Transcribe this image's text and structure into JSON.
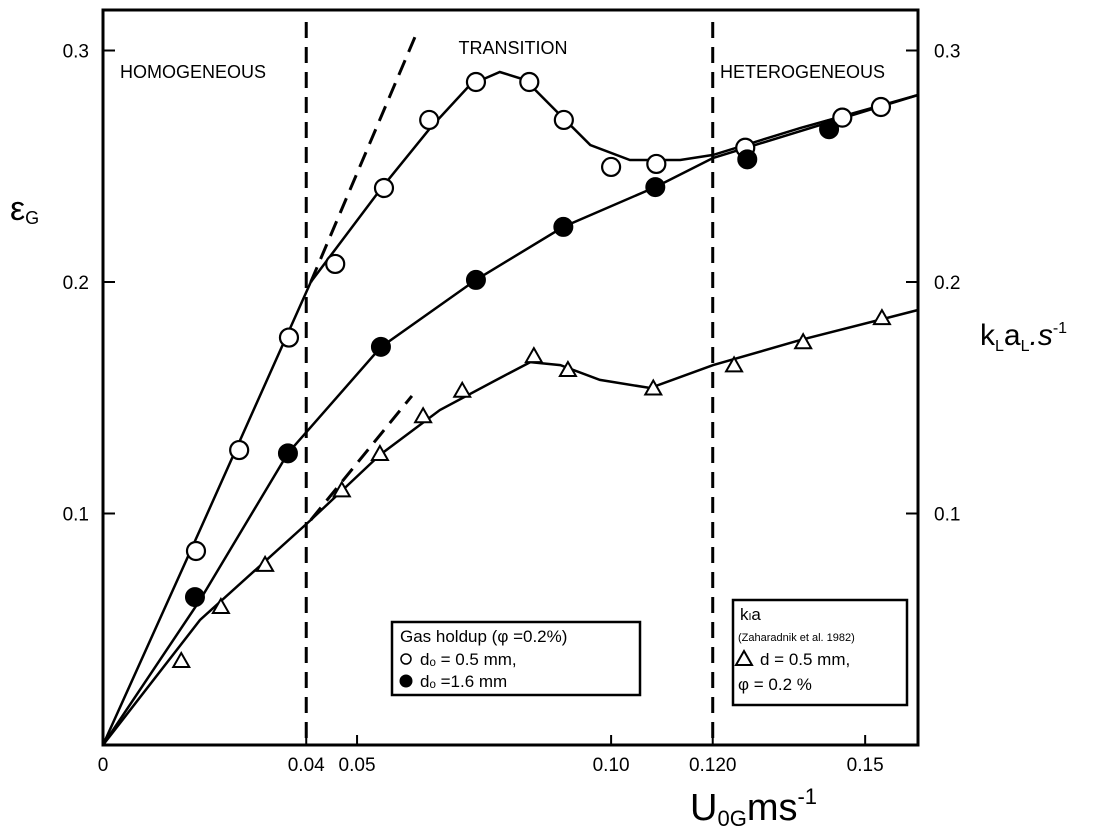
{
  "chart_data": {
    "type": "scatter",
    "x_label": [
      "U",
      "0G",
      "ms",
      "-1"
    ],
    "y_label": [
      "ε",
      "G"
    ],
    "y2_label": [
      "k",
      "L",
      "a",
      "L",
      ".s",
      "-1"
    ],
    "xlim": [
      0,
      0.1604
    ],
    "ylim": [
      0,
      0.3175
    ],
    "y2lim": [
      0,
      0.3175
    ],
    "xticks": [
      0,
      0.04,
      0.05,
      {
        "value": 0.1,
        "label": "0.10"
      },
      {
        "value": 0.12,
        "label": "0.120"
      },
      0.15
    ],
    "yticks": [
      0.1,
      0.2,
      0.3
    ],
    "y2ticks": [
      0.1,
      0.2,
      0.3
    ],
    "annotations": [
      "HOMOGENEOUS",
      "TRANSITION",
      "HETEROGENEOUS"
    ],
    "boundaries": [
      0.04,
      0.12
    ],
    "legend_titles": [
      "Gas holdup (φ =0.2%)",
      "kₗa"
    ],
    "legend_note": "(Zaharadnik et al. 1982)",
    "legend_extra": "φ = 0.2 %",
    "series": [
      {
        "name": "dₒ = 0.5 mm,",
        "marker": "open-circle",
        "color": "#000000",
        "x": [
          0.0183,
          0.0268,
          0.0366,
          0.0457,
          0.0553,
          0.0642,
          0.0734,
          0.0839,
          0.0907,
          0.1,
          0.1089,
          0.1264,
          0.1455,
          0.1531
        ],
        "values": [
          0.0838,
          0.1274,
          0.176,
          0.2078,
          0.2406,
          0.27,
          0.2864,
          0.2864,
          0.27,
          0.2497,
          0.251,
          0.258,
          0.271,
          0.2756
        ],
        "fit": {
          "x": [
            0,
            0.0191,
            0.0409,
            0.0545,
            0.0644,
            0.0722,
            0.0781,
            0.0831,
            0.089,
            0.0959,
            0.1037,
            0.1136,
            0.1201,
            0.1372,
            0.1604
          ],
          "values": [
            0,
            0.0929,
            0.2,
            0.2397,
            0.2665,
            0.2851,
            0.2907,
            0.2873,
            0.2743,
            0.2592,
            0.2527,
            0.2527,
            0.2549,
            0.2665,
            0.2808
          ]
        },
        "extrapolation": {
          "x": [
            0.0409,
            0.062
          ],
          "values": [
            0.2,
            0.3089
          ]
        }
      },
      {
        "name": "dₒ =1.6 mm",
        "marker": "filled-circle",
        "color": "#000000",
        "x": [
          0.0181,
          0.0364,
          0.0547,
          0.0734,
          0.0906,
          0.1087,
          0.1268,
          0.1429
        ],
        "values": [
          0.0639,
          0.126,
          0.172,
          0.2009,
          0.2238,
          0.241,
          0.253,
          0.266
        ],
        "fit": {
          "x": [
            0,
            0.0191,
            0.0364,
            0.0547,
            0.0734,
            0.0906,
            0.1087,
            0.1201,
            0.1604
          ],
          "values": [
            0,
            0.0626,
            0.1261,
            0.1719,
            0.2009,
            0.2238,
            0.241,
            0.2536,
            0.2808
          ]
        }
      },
      {
        "name": "d = 0.5 mm,",
        "marker": "triangle",
        "color": "#000000",
        "axis": "y2",
        "x": [
          0.0154,
          0.0232,
          0.0319,
          0.047,
          0.0545,
          0.063,
          0.0707,
          0.0848,
          0.0915,
          0.1083,
          0.1242,
          0.1378,
          0.1533
        ],
        "values": [
          0.0363,
          0.0596,
          0.0778,
          0.11,
          0.1257,
          0.142,
          0.153,
          0.168,
          0.162,
          0.154,
          0.164,
          0.174,
          0.1844
        ],
        "fit": {
          "x": [
            0,
            0.0191,
            0.0409,
            0.0545,
            0.0663,
            0.0781,
            0.0841,
            0.09,
            0.0978,
            0.1077,
            0.1201,
            0.1372,
            0.1604
          ],
          "values": [
            0,
            0.054,
            0.0972,
            0.1253,
            0.1447,
            0.1585,
            0.1654,
            0.1641,
            0.1577,
            0.1542,
            0.1641,
            0.1749,
            0.1879
          ]
        },
        "extrapolation": {
          "x": [
            0.0409,
            0.0608
          ],
          "values": [
            0.0972,
            0.1508
          ]
        }
      }
    ]
  }
}
